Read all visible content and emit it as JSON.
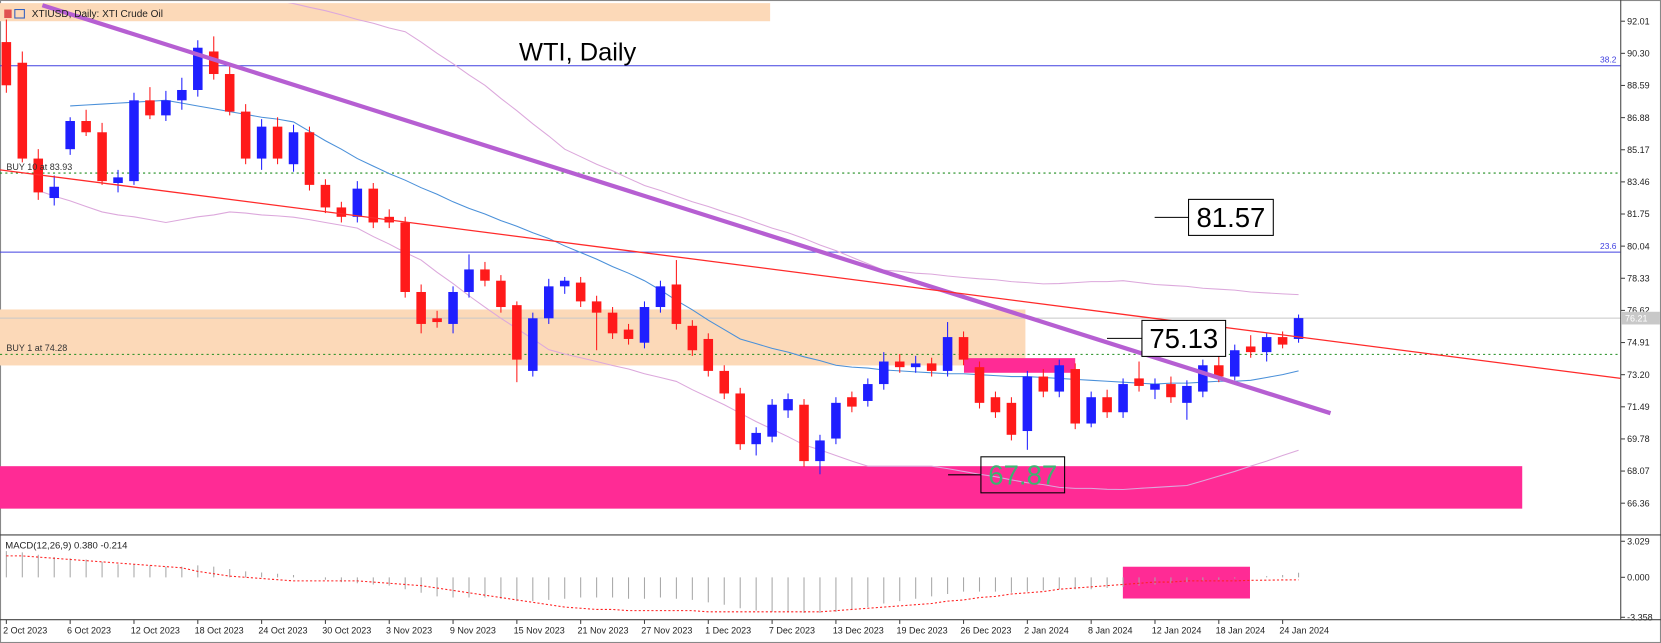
{
  "chart_data": {
    "type": "candlestick",
    "header": "XTIUSD, Daily: XTI Crude Oil",
    "title": "WTI, Daily",
    "up_color": "#1f1fff",
    "down_color": "#ff1a1a",
    "categories": [
      "2 Oct 2023",
      null,
      null,
      null,
      "6 Oct 2023",
      null,
      null,
      null,
      "12 Oct 2023",
      null,
      null,
      null,
      "18 Oct 2023",
      null,
      null,
      null,
      "24 Oct 2023",
      null,
      null,
      null,
      "30 Oct 2023",
      null,
      null,
      null,
      "3 Nov 2023",
      null,
      null,
      null,
      "9 Nov 2023",
      null,
      null,
      null,
      "15 Nov 2023",
      null,
      null,
      null,
      "21 Nov 2023",
      null,
      null,
      null,
      "27 Nov 2023",
      null,
      null,
      null,
      "1 Dec 2023",
      null,
      null,
      null,
      "7 Dec 2023",
      null,
      null,
      null,
      "13 Dec 2023",
      null,
      null,
      null,
      "19 Dec 2023",
      null,
      null,
      null,
      "26 Dec 2023",
      null,
      null,
      null,
      "2 Jan 2024",
      null,
      null,
      null,
      "8 Jan 2024",
      null,
      null,
      null,
      "12 Jan 2024",
      null,
      null,
      null,
      "18 Jan 2024",
      null,
      null,
      null,
      "24 Jan 2024",
      null
    ],
    "ohlc": [
      [
        90.9,
        92.1,
        88.2,
        88.6
      ],
      [
        89.8,
        90.4,
        84.5,
        84.7
      ],
      [
        84.7,
        85.2,
        82.5,
        82.9
      ],
      [
        82.6,
        83.8,
        82.2,
        83.2
      ],
      [
        85.2,
        86.9,
        84.9,
        86.7
      ],
      [
        86.7,
        87.3,
        85.9,
        86.1
      ],
      [
        86.1,
        86.6,
        83.3,
        83.5
      ],
      [
        83.4,
        84.1,
        82.9,
        83.7
      ],
      [
        83.5,
        88.2,
        83.3,
        87.8
      ],
      [
        87.8,
        88.5,
        86.8,
        87.0
      ],
      [
        87.0,
        88.3,
        86.7,
        87.8
      ],
      [
        87.8,
        89.0,
        87.3,
        88.35
      ],
      [
        88.35,
        91.0,
        88.0,
        90.6
      ],
      [
        90.4,
        91.2,
        88.9,
        89.2
      ],
      [
        89.2,
        89.6,
        87.0,
        87.2
      ],
      [
        87.2,
        87.6,
        84.4,
        84.7
      ],
      [
        84.7,
        86.8,
        84.1,
        86.4
      ],
      [
        86.4,
        86.9,
        84.4,
        84.7
      ],
      [
        84.4,
        86.5,
        84.0,
        86.1
      ],
      [
        86.1,
        86.4,
        83.0,
        83.3
      ],
      [
        83.3,
        83.6,
        81.8,
        82.1
      ],
      [
        82.1,
        82.4,
        81.3,
        81.6
      ],
      [
        81.6,
        83.5,
        81.3,
        83.1
      ],
      [
        83.1,
        83.4,
        81.0,
        81.3
      ],
      [
        81.6,
        82.0,
        81.0,
        81.3
      ],
      [
        81.3,
        81.6,
        77.3,
        77.6
      ],
      [
        77.6,
        78.0,
        75.4,
        75.9
      ],
      [
        76.2,
        76.6,
        75.7,
        76.0
      ],
      [
        75.9,
        77.9,
        75.4,
        77.6
      ],
      [
        77.6,
        79.6,
        77.3,
        78.8
      ],
      [
        78.8,
        79.2,
        77.9,
        78.2
      ],
      [
        78.2,
        78.5,
        76.5,
        76.8
      ],
      [
        76.9,
        77.1,
        72.8,
        74.0
      ],
      [
        73.4,
        76.5,
        73.1,
        76.2
      ],
      [
        76.2,
        78.3,
        75.9,
        77.9
      ],
      [
        77.9,
        78.4,
        77.5,
        78.2
      ],
      [
        78.1,
        78.4,
        76.8,
        77.1
      ],
      [
        77.1,
        77.4,
        74.5,
        76.5
      ],
      [
        76.5,
        76.8,
        75.1,
        75.4
      ],
      [
        75.6,
        75.9,
        74.8,
        75.1
      ],
      [
        74.9,
        77.1,
        74.6,
        76.8
      ],
      [
        76.8,
        78.2,
        76.5,
        77.9
      ],
      [
        78.0,
        79.3,
        75.6,
        75.9
      ],
      [
        75.8,
        76.1,
        74.2,
        74.5
      ],
      [
        75.1,
        75.4,
        73.1,
        73.4
      ],
      [
        73.4,
        73.7,
        71.9,
        72.2
      ],
      [
        72.2,
        72.5,
        69.2,
        69.5
      ],
      [
        69.5,
        70.4,
        68.9,
        70.1
      ],
      [
        69.9,
        71.9,
        69.6,
        71.6
      ],
      [
        71.3,
        72.2,
        70.9,
        71.9
      ],
      [
        71.6,
        71.9,
        68.3,
        68.6
      ],
      [
        68.6,
        70.0,
        67.9,
        69.7
      ],
      [
        69.8,
        72.0,
        69.5,
        71.7
      ],
      [
        72.0,
        72.3,
        71.2,
        71.5
      ],
      [
        71.8,
        73.0,
        71.5,
        72.7
      ],
      [
        72.7,
        74.4,
        72.4,
        73.9
      ],
      [
        73.9,
        74.3,
        73.3,
        73.6
      ],
      [
        73.6,
        74.2,
        73.3,
        73.8
      ],
      [
        73.8,
        74.1,
        73.1,
        73.4
      ],
      [
        73.4,
        76.0,
        73.1,
        75.2
      ],
      [
        75.2,
        75.5,
        73.7,
        74.0
      ],
      [
        73.6,
        73.9,
        71.4,
        71.7
      ],
      [
        72.0,
        72.3,
        70.9,
        71.2
      ],
      [
        71.7,
        72.0,
        69.7,
        70.0
      ],
      [
        70.2,
        73.4,
        69.2,
        73.1
      ],
      [
        73.1,
        73.5,
        72.0,
        72.3
      ],
      [
        72.3,
        74.0,
        72.0,
        73.7
      ],
      [
        73.5,
        73.8,
        70.3,
        70.6
      ],
      [
        70.6,
        72.3,
        70.4,
        72.0
      ],
      [
        72.0,
        72.4,
        70.9,
        71.2
      ],
      [
        71.2,
        73.0,
        70.9,
        72.7
      ],
      [
        73.0,
        73.9,
        72.3,
        72.6
      ],
      [
        72.4,
        73.0,
        71.9,
        72.7
      ],
      [
        72.7,
        73.1,
        71.7,
        72.0
      ],
      [
        71.7,
        72.9,
        70.8,
        72.6
      ],
      [
        72.3,
        74.0,
        72.0,
        73.7
      ],
      [
        73.7,
        74.2,
        72.8,
        73.1
      ],
      [
        73.1,
        74.8,
        72.9,
        74.5
      ],
      [
        74.7,
        75.3,
        74.1,
        74.4
      ],
      [
        74.4,
        75.4,
        73.9,
        75.2
      ],
      [
        75.2,
        75.5,
        74.6,
        74.8
      ],
      [
        75.1,
        76.4,
        74.9,
        76.21
      ]
    ],
    "ma": {
      "color": "#4a90d9",
      "values": [
        null,
        null,
        null,
        null,
        87.5,
        87.55,
        87.6,
        87.65,
        87.7,
        87.75,
        87.8,
        87.65,
        87.5,
        87.35,
        87.2,
        87.05,
        86.9,
        86.8,
        86.65,
        86.15,
        85.65,
        85.2,
        84.7,
        84.3,
        83.9,
        83.55,
        83.15,
        82.8,
        82.4,
        82.05,
        81.75,
        81.4,
        81.1,
        80.75,
        80.45,
        80.05,
        79.7,
        79.35,
        78.95,
        78.6,
        78.2,
        77.7,
        77.15,
        76.65,
        76.1,
        75.6,
        75.1,
        74.85,
        74.6,
        74.4,
        74.15,
        73.95,
        73.7,
        73.6,
        73.55,
        73.45,
        73.4,
        73.35,
        73.3,
        73.25,
        73.25,
        73.2,
        73.15,
        73.1,
        73.1,
        73.05,
        73.0,
        72.95,
        72.9,
        72.85,
        72.8,
        72.75,
        72.7,
        72.75,
        72.75,
        72.8,
        72.85,
        72.85,
        72.9,
        73.05,
        73.2,
        73.4
      ]
    },
    "band_upper": {
      "color": "#dca8dc",
      "values": [
        null,
        null,
        null,
        null,
        null,
        null,
        null,
        null,
        null,
        null,
        null,
        null,
        null,
        null,
        93.7,
        93.5,
        93.3,
        93.1,
        92.95,
        92.75,
        92.57,
        92.35,
        92.1,
        91.9,
        91.65,
        91.45,
        90.9,
        90.3,
        89.75,
        89.15,
        88.6,
        87.9,
        87.25,
        86.55,
        85.9,
        85.2,
        84.8,
        84.4,
        84.05,
        83.65,
        83.27,
        83.0,
        82.7,
        82.4,
        82.15,
        81.86,
        81.6,
        81.3,
        81.0,
        80.75,
        80.45,
        80.1,
        79.8,
        79.45,
        79.1,
        78.76,
        78.7,
        78.6,
        78.55,
        78.45,
        78.37,
        78.3,
        78.25,
        78.15,
        78.1,
        78.03,
        78.05,
        78.1,
        78.15,
        78.15,
        78.2,
        78.1,
        78.0,
        77.95,
        77.9,
        77.8,
        77.75,
        77.7,
        77.6,
        77.55,
        77.5,
        77.46
      ]
    },
    "band_lower": {
      "color": "#dca8dc",
      "values": [
        null,
        null,
        83.0,
        82.7,
        82.45,
        82.15,
        81.86,
        81.7,
        81.6,
        81.45,
        81.3,
        81.45,
        81.6,
        81.7,
        81.86,
        81.8,
        81.7,
        81.65,
        81.58,
        81.45,
        81.3,
        81.15,
        81.0,
        80.55,
        80.15,
        79.7,
        79.3,
        78.65,
        78.05,
        77.4,
        76.79,
        76.2,
        75.65,
        75.1,
        74.53,
        74.3,
        74.1,
        73.9,
        73.69,
        73.5,
        73.25,
        73.05,
        72.84,
        72.4,
        72.0,
        71.6,
        71.15,
        70.7,
        70.3,
        69.9,
        69.46,
        69.2,
        68.9,
        68.6,
        68.33,
        68.33,
        68.33,
        68.33,
        68.33,
        68.2,
        68.05,
        67.9,
        67.77,
        67.6,
        67.45,
        67.35,
        67.2,
        67.15,
        67.15,
        67.1,
        67.09,
        67.15,
        67.2,
        67.25,
        67.3,
        67.55,
        67.8,
        68.05,
        68.33,
        68.6,
        68.9,
        69.18
      ]
    },
    "ylim": [
      64.67,
      92.97
    ],
    "yticks": [
      92.01,
      {
        "value": 90.3,
        "label": "90.30"
      },
      88.59,
      86.88,
      85.17,
      83.46,
      81.75,
      80.04,
      78.33,
      76.62,
      74.91,
      {
        "value": 73.2,
        "label": "73.20"
      },
      71.49,
      69.78,
      68.07,
      66.36
    ],
    "last_price": 76.21,
    "zones": [
      {
        "color": "#fcd9b8",
        "range": [
          92.01,
          93.2
        ]
      },
      {
        "color": "#fcd9b8",
        "range": [
          73.69,
          76.67
        ]
      },
      {
        "color": "#ff2b95",
        "range": [
          66.07,
          68.33
        ]
      },
      {
        "color": "#ff2b95",
        "range": [
          73.3,
          74.08
        ]
      }
    ],
    "fib_levels": [
      {
        "label": "38.2",
        "price": 89.64
      },
      {
        "label": "23.6",
        "price": 79.72
      }
    ],
    "fib_color": "#4040e0",
    "orders": [
      {
        "label": "BUY 10 at 83.93",
        "price": 83.93
      },
      {
        "label": "BUY 1 at 74.28",
        "price": 74.28
      }
    ],
    "order_color": "#1e8c1e",
    "trendlines": [
      {
        "color": "#b65fd2",
        "from": 92.86,
        "to": 71.15
      },
      {
        "color": "#ff2a2a",
        "from": 84.1,
        "to": 73.0
      }
    ],
    "callouts": [
      81.57,
      75.13,
      67.87
    ],
    "callout_colors": [
      "#000000",
      "#000000",
      "#3cb371"
    ],
    "macd": {
      "title": "MACD(12,26,9) 0.380 -0.214",
      "ylim": [
        -3.56,
        3.56
      ],
      "yticks": [
        3.029,
        {
          "value": 0,
          "label": "0.000"
        },
        -3.358
      ],
      "histogram_color": "#a8a8a8",
      "signal_color": "#ff2020",
      "histogram": [
        2.2,
        2.1,
        1.9,
        1.7,
        1.6,
        1.5,
        1.3,
        1.1,
        1.1,
        1.0,
        0.9,
        0.9,
        1.0,
        0.9,
        0.7,
        0.5,
        0.4,
        0.3,
        0.2,
        0.0,
        -0.2,
        -0.4,
        -0.5,
        -0.6,
        -0.7,
        -1.0,
        -1.3,
        -1.6,
        -1.7,
        -1.7,
        -1.7,
        -1.8,
        -2.0,
        -2.0,
        -1.9,
        -1.8,
        -1.7,
        -1.7,
        -1.7,
        -1.8,
        -1.8,
        -1.7,
        -1.8,
        -1.9,
        -2.1,
        -2.3,
        -2.6,
        -2.8,
        -2.9,
        -2.9,
        -3.0,
        -3.0,
        -2.9,
        -2.7,
        -2.5,
        -2.2,
        -2.0,
        -1.8,
        -1.6,
        -1.4,
        -1.2,
        -1.2,
        -1.2,
        -1.3,
        -1.2,
        -1.1,
        -1.0,
        -1.0,
        -1.0,
        -0.9,
        -0.8,
        -0.7,
        -0.6,
        -0.5,
        -0.4,
        -0.3,
        -0.2,
        -0.1,
        0.0,
        0.1,
        0.2,
        0.38
      ],
      "signal": [
        1.8,
        1.8,
        1.7,
        1.6,
        1.5,
        1.4,
        1.3,
        1.2,
        1.1,
        1.0,
        0.9,
        0.8,
        0.5,
        0.3,
        0.1,
        0.0,
        -0.1,
        -0.2,
        -0.3,
        -0.3,
        -0.3,
        -0.3,
        -0.3,
        -0.4,
        -0.5,
        -0.6,
        -0.7,
        -0.9,
        -1.1,
        -1.3,
        -1.5,
        -1.7,
        -1.9,
        -2.1,
        -2.3,
        -2.5,
        -2.6,
        -2.7,
        -2.7,
        -2.8,
        -2.8,
        -2.8,
        -2.8,
        -2.8,
        -2.9,
        -2.9,
        -2.9,
        -2.9,
        -2.9,
        -2.9,
        -2.9,
        -2.9,
        -2.8,
        -2.7,
        -2.6,
        -2.5,
        -2.4,
        -2.3,
        -2.2,
        -2.0,
        -1.9,
        -1.7,
        -1.6,
        -1.4,
        -1.3,
        -1.2,
        -1.0,
        -0.9,
        -0.8,
        -0.7,
        -0.6,
        -0.5,
        -0.4,
        -0.4,
        -0.3,
        -0.3,
        -0.3,
        -0.3,
        -0.25,
        -0.24,
        -0.22,
        -0.214
      ],
      "zone": {
        "color": "#ff2b95",
        "range": [
          -1.78,
          0.89
        ]
      }
    }
  }
}
